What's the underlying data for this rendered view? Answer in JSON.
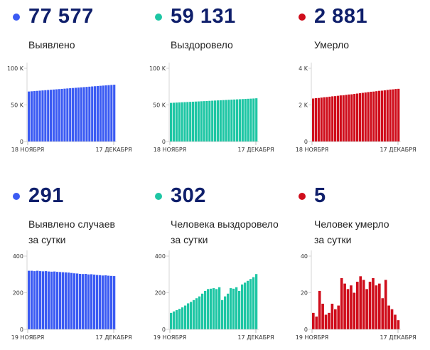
{
  "panels": [
    {
      "value": "77 577",
      "label": [
        "Выявлено"
      ],
      "color": "#3b5bf3"
    },
    {
      "value": "59 131",
      "label": [
        "Выздоровело"
      ],
      "color": "#1ec6a4"
    },
    {
      "value": "2 881",
      "label": [
        "Умерло"
      ],
      "color": "#cf0d1b"
    },
    {
      "value": "291",
      "label": [
        "Выявлено случаев",
        "за сутки"
      ],
      "color": "#3b5bf3"
    },
    {
      "value": "302",
      "label": [
        "Человека выздоровело",
        "за сутки"
      ],
      "color": "#1ec6a4"
    },
    {
      "value": "5",
      "label": [
        "Человек умерло",
        "за сутки"
      ],
      "color": "#cf0d1b"
    }
  ],
  "chart_data": [
    {
      "type": "bar",
      "series": [
        {
          "values": [
            68.3,
            68.6,
            68.9,
            69.2,
            69.5,
            69.8,
            70.1,
            70.4,
            70.7,
            71.0,
            71.3,
            71.6,
            71.9,
            72.2,
            72.5,
            72.8,
            73.1,
            73.4,
            73.7,
            74.0,
            74.3,
            74.6,
            74.9,
            75.2,
            75.5,
            75.8,
            76.1,
            76.4,
            76.7,
            77.0,
            77.3,
            77.6
          ]
        }
      ],
      "ylim": [
        0,
        100
      ],
      "yticks": [
        "0",
        "50 K",
        "100 K"
      ],
      "ytick_values": [
        0,
        50,
        100
      ],
      "x_start": "18 НОЯБРЯ",
      "x_end": "17 ДЕКАБРЯ",
      "color": "#3b5bf3"
    },
    {
      "type": "bar",
      "series": [
        {
          "values": [
            52.8,
            53.0,
            53.2,
            53.4,
            53.6,
            53.8,
            54.0,
            54.2,
            54.4,
            54.6,
            54.8,
            55.0,
            55.2,
            55.4,
            55.6,
            55.8,
            56.0,
            56.2,
            56.4,
            56.6,
            56.8,
            57.0,
            57.2,
            57.4,
            57.6,
            57.8,
            58.0,
            58.2,
            58.4,
            58.6,
            58.8,
            59.1
          ]
        }
      ],
      "ylim": [
        0,
        100
      ],
      "yticks": [
        "0",
        "50 K",
        "100 K"
      ],
      "ytick_values": [
        0,
        50,
        100
      ],
      "x_start": "18 НОЯБРЯ",
      "x_end": "17 ДЕКАБРЯ",
      "color": "#1ec6a4"
    },
    {
      "type": "bar",
      "series": [
        {
          "values": [
            2.35,
            2.37,
            2.38,
            2.4,
            2.42,
            2.43,
            2.45,
            2.47,
            2.48,
            2.5,
            2.52,
            2.53,
            2.55,
            2.57,
            2.58,
            2.6,
            2.62,
            2.64,
            2.66,
            2.68,
            2.7,
            2.72,
            2.73,
            2.75,
            2.77,
            2.78,
            2.8,
            2.82,
            2.84,
            2.85,
            2.87,
            2.88
          ]
        }
      ],
      "ylim": [
        0,
        4
      ],
      "yticks": [
        "0",
        "2 K",
        "4 K"
      ],
      "ytick_values": [
        0,
        2,
        4
      ],
      "x_start": "18 НОЯБРЯ",
      "x_end": "17 ДЕКАБРЯ",
      "color": "#cf0d1b"
    },
    {
      "type": "bar",
      "series": [
        {
          "values": [
            320,
            320,
            318,
            320,
            318,
            317,
            318,
            316,
            315,
            316,
            314,
            313,
            312,
            311,
            310,
            308,
            306,
            305,
            303,
            302,
            303,
            300,
            301,
            299,
            297,
            296,
            294,
            295,
            293,
            292,
            291
          ]
        }
      ],
      "ylim": [
        0,
        400
      ],
      "yticks": [
        "0",
        "200",
        "400"
      ],
      "ytick_values": [
        0,
        200,
        400
      ],
      "x_start": "19 НОЯБРЯ",
      "x_end": "17 ДЕКАБРЯ",
      "color": "#3b5bf3"
    },
    {
      "type": "bar",
      "series": [
        {
          "values": [
            90,
            98,
            105,
            112,
            120,
            130,
            142,
            150,
            160,
            170,
            180,
            195,
            210,
            220,
            222,
            225,
            220,
            230,
            160,
            180,
            195,
            225,
            222,
            230,
            210,
            245,
            255,
            265,
            275,
            285,
            302
          ]
        }
      ],
      "ylim": [
        0,
        400
      ],
      "yticks": [
        "0",
        "200",
        "400"
      ],
      "ytick_values": [
        0,
        200,
        400
      ],
      "x_start": "19 НОЯБРЯ",
      "x_end": "17 ДЕКАБРЯ",
      "color": "#1ec6a4"
    },
    {
      "type": "bar",
      "series": [
        {
          "values": [
            9,
            7,
            21,
            14,
            8,
            9,
            14,
            11,
            13,
            28,
            25,
            22,
            24,
            20,
            26,
            29,
            27,
            22,
            26,
            28,
            24,
            25,
            17,
            27,
            13,
            11,
            8,
            5
          ]
        }
      ],
      "ylim": [
        0,
        40
      ],
      "yticks": [
        "0",
        "20",
        "40"
      ],
      "ytick_values": [
        0,
        20,
        40
      ],
      "x_start": "19 НОЯБРЯ",
      "x_end": "17 ДЕКАБРЯ",
      "color": "#cf0d1b"
    }
  ]
}
